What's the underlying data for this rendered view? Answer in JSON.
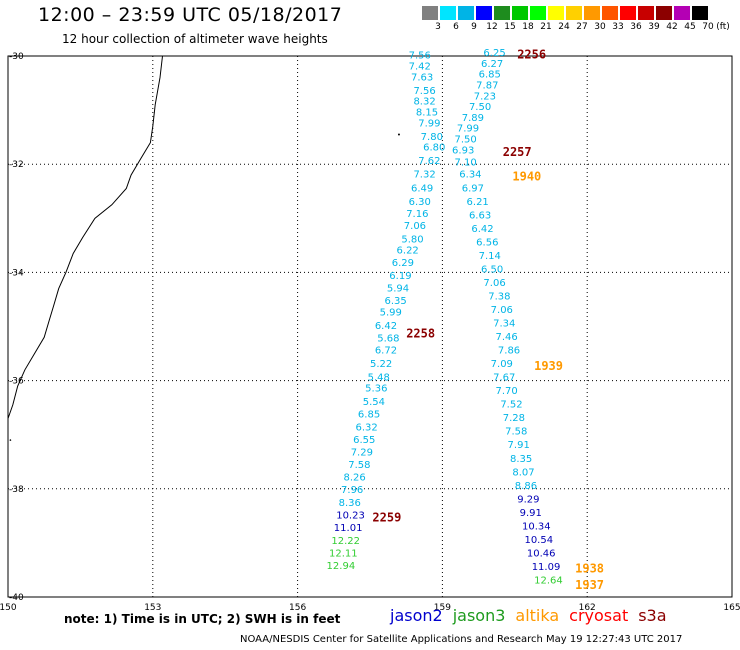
{
  "header": {
    "title": "12:00 – 23:59 UTC 05/18/2017",
    "subtitle": "12 hour collection of altimeter wave heights"
  },
  "scale": {
    "unit": "(ft)",
    "bins": [
      {
        "label": "3",
        "color": "#808080"
      },
      {
        "label": "6",
        "color": "#00e5ff"
      },
      {
        "label": "9",
        "color": "#00b4e6"
      },
      {
        "label": "12",
        "color": "#0000ff"
      },
      {
        "label": "15",
        "color": "#1e8c1e"
      },
      {
        "label": "18",
        "color": "#00c800"
      },
      {
        "label": "21",
        "color": "#00ff00"
      },
      {
        "label": "24",
        "color": "#ffff00"
      },
      {
        "label": "27",
        "color": "#ffd000"
      },
      {
        "label": "30",
        "color": "#ff9900"
      },
      {
        "label": "33",
        "color": "#ff5500"
      },
      {
        "label": "36",
        "color": "#ff0000"
      },
      {
        "label": "39",
        "color": "#c80000"
      },
      {
        "label": "42",
        "color": "#8c0000"
      },
      {
        "label": "45",
        "color": "#b400b4"
      },
      {
        "label": "70",
        "color": "#000000"
      }
    ]
  },
  "axes": {
    "x_ticks": [
      "150",
      "153",
      "156",
      "159",
      "162",
      "165"
    ],
    "y_ticks": [
      "-30",
      "-32",
      "-34",
      "-36",
      "-38",
      "-40"
    ]
  },
  "colors": {
    "light": "#00b4e6",
    "dark": "#0000b4",
    "green": "#32cd32",
    "orange": "#ff9900",
    "maroon": "#8b0000"
  },
  "tracks": [
    {
      "points": [
        [
          "7.56",
          158.3,
          -30.05,
          "light"
        ],
        [
          "7.42",
          158.3,
          -30.25,
          "light"
        ],
        [
          "7.63",
          158.35,
          -30.45,
          "light"
        ],
        [
          "7.56",
          158.4,
          -30.7,
          "light"
        ],
        [
          "8.32",
          158.4,
          -30.9,
          "light"
        ],
        [
          "8.15",
          158.45,
          -31.1,
          "light"
        ],
        [
          "7.99",
          158.5,
          -31.3,
          "light"
        ],
        [
          "7.80",
          158.55,
          -31.55,
          "light"
        ],
        [
          "6.80",
          158.6,
          -31.75,
          "light"
        ],
        [
          "7.62",
          158.5,
          -32.0,
          "light"
        ],
        [
          "7.32",
          158.4,
          -32.25,
          "light"
        ],
        [
          "6.49",
          158.35,
          -32.5,
          "light"
        ],
        [
          "6.30",
          158.3,
          -32.75,
          "light"
        ],
        [
          "7.16",
          158.25,
          -32.98,
          "light"
        ],
        [
          "7.06",
          158.2,
          -33.2,
          "light"
        ],
        [
          "5.80",
          158.15,
          -33.45,
          "light"
        ],
        [
          "6.22",
          158.05,
          -33.65,
          "light"
        ],
        [
          "6.29",
          157.95,
          -33.88,
          "light"
        ],
        [
          "6.19",
          157.9,
          -34.12,
          "light"
        ],
        [
          "5.94",
          157.85,
          -34.35,
          "light"
        ],
        [
          "6.35",
          157.8,
          -34.58,
          "light"
        ],
        [
          "5.99",
          157.7,
          -34.8,
          "light"
        ],
        [
          "6.42",
          157.6,
          -35.05,
          "light"
        ],
        [
          "5.68",
          157.65,
          -35.28,
          "light"
        ],
        [
          "6.72",
          157.6,
          -35.5,
          "light"
        ],
        [
          "5.22",
          157.5,
          -35.75,
          "light"
        ],
        [
          "5.48",
          157.45,
          -36.0,
          "light"
        ],
        [
          "5.36",
          157.4,
          -36.2,
          "light"
        ],
        [
          "5.54",
          157.35,
          -36.45,
          "light"
        ],
        [
          "6.85",
          157.25,
          -36.68,
          "light"
        ],
        [
          "6.32",
          157.2,
          -36.92,
          "light"
        ],
        [
          "6.55",
          157.15,
          -37.15,
          "light"
        ],
        [
          "7.29",
          157.1,
          -37.38,
          "light"
        ],
        [
          "7.58",
          157.05,
          -37.62,
          "light"
        ],
        [
          "8.26",
          156.95,
          -37.85,
          "light"
        ],
        [
          "7.96",
          156.9,
          -38.08,
          "light"
        ],
        [
          "8.36",
          156.85,
          -38.32,
          "light"
        ],
        [
          "10.23",
          156.8,
          -38.55,
          "dark"
        ],
        [
          "11.01",
          156.75,
          -38.78,
          "dark"
        ],
        [
          "12.22",
          156.7,
          -39.02,
          "green"
        ],
        [
          "12.11",
          156.65,
          -39.25,
          "green"
        ],
        [
          "12.94",
          156.6,
          -39.48,
          "green"
        ]
      ]
    },
    {
      "points": [
        [
          "6.25",
          159.85,
          -30.0,
          "light"
        ],
        [
          "6.27",
          159.8,
          -30.2,
          "light"
        ],
        [
          "6.85",
          159.75,
          -30.4,
          "light"
        ],
        [
          "7.87",
          159.7,
          -30.6,
          "light"
        ],
        [
          "7.23",
          159.65,
          -30.8,
          "light"
        ],
        [
          "7.50",
          159.55,
          -31.0,
          "light"
        ],
        [
          "7.89",
          159.4,
          -31.2,
          "light"
        ],
        [
          "7.99",
          159.3,
          -31.4,
          "light"
        ],
        [
          "7.50",
          159.25,
          -31.6,
          "light"
        ],
        [
          "6.93",
          159.2,
          -31.8,
          "light"
        ],
        [
          "7.10",
          159.25,
          -32.02,
          "light"
        ],
        [
          "6.34",
          159.35,
          -32.25,
          "light"
        ],
        [
          "6.97",
          159.4,
          -32.5,
          "light"
        ],
        [
          "6.21",
          159.5,
          -32.75,
          "light"
        ],
        [
          "6.63",
          159.55,
          -33.0,
          "light"
        ],
        [
          "6.42",
          159.6,
          -33.25,
          "light"
        ],
        [
          "6.56",
          159.7,
          -33.5,
          "light"
        ],
        [
          "7.14",
          159.75,
          -33.75,
          "light"
        ],
        [
          "6.50",
          159.8,
          -34.0,
          "light"
        ],
        [
          "7.06",
          159.85,
          -34.25,
          "light"
        ],
        [
          "7.38",
          159.95,
          -34.5,
          "light"
        ],
        [
          "7.06",
          160.0,
          -34.75,
          "light"
        ],
        [
          "7.34",
          160.05,
          -35.0,
          "light"
        ],
        [
          "7.46",
          160.1,
          -35.25,
          "light"
        ],
        [
          "7.86",
          160.15,
          -35.5,
          "light"
        ],
        [
          "7.09",
          160.0,
          -35.75,
          "light"
        ],
        [
          "7.67",
          160.05,
          -36.0,
          "light"
        ],
        [
          "7.70",
          160.1,
          -36.25,
          "light"
        ],
        [
          "7.52",
          160.2,
          -36.5,
          "light"
        ],
        [
          "7.28",
          160.25,
          -36.75,
          "light"
        ],
        [
          "7.58",
          160.3,
          -37.0,
          "light"
        ],
        [
          "7.91",
          160.35,
          -37.25,
          "light"
        ],
        [
          "8.35",
          160.4,
          -37.5,
          "light"
        ],
        [
          "8.07",
          160.45,
          -37.75,
          "light"
        ],
        [
          "8.86",
          160.5,
          -38.0,
          "light"
        ],
        [
          "9.29",
          160.55,
          -38.25,
          "dark"
        ],
        [
          "9.91",
          160.6,
          -38.5,
          "dark"
        ],
        [
          "10.34",
          160.65,
          -38.75,
          "dark"
        ],
        [
          "10.54",
          160.7,
          -39.0,
          "dark"
        ],
        [
          "10.46",
          160.75,
          -39.25,
          "dark"
        ],
        [
          "11.09",
          160.85,
          -39.5,
          "dark"
        ],
        [
          "12.64",
          160.9,
          -39.75,
          "green"
        ]
      ]
    }
  ],
  "time_labels": [
    {
      "text": "2256",
      "lon": 160.55,
      "lat": -30.05,
      "color": "maroon"
    },
    {
      "text": "2257",
      "lon": 160.25,
      "lat": -31.85,
      "color": "maroon"
    },
    {
      "text": "1940",
      "lon": 160.45,
      "lat": -32.3,
      "color": "orange"
    },
    {
      "text": "2258",
      "lon": 158.25,
      "lat": -35.2,
      "color": "maroon"
    },
    {
      "text": "1939",
      "lon": 160.9,
      "lat": -35.8,
      "color": "orange"
    },
    {
      "text": "2259",
      "lon": 157.55,
      "lat": -38.6,
      "color": "maroon"
    },
    {
      "text": "1938",
      "lon": 161.75,
      "lat": -39.55,
      "color": "orange"
    },
    {
      "text": "1937",
      "lon": 161.75,
      "lat": -39.85,
      "color": "orange"
    }
  ],
  "footer": {
    "note": "note:  1) Time is in UTC;  2) SWH is in feet",
    "credit": "NOAA/NESDIS Center for Satellite Applications and Research   May 19 12:27:43 UTC 2017",
    "satellites": [
      {
        "name": "jason2",
        "color": "#0000cd"
      },
      {
        "name": "jason3",
        "color": "#1e9b1e"
      },
      {
        "name": "altika",
        "color": "#ff9900"
      },
      {
        "name": "cryosat",
        "color": "#ff0000"
      },
      {
        "name": "s3a",
        "color": "#8b0000"
      }
    ]
  }
}
